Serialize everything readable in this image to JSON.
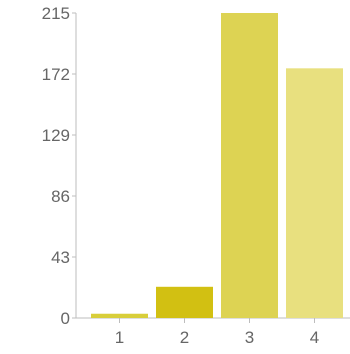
{
  "chart_data": {
    "type": "bar",
    "categories": [
      "1",
      "2",
      "3",
      "4"
    ],
    "values": [
      3,
      22,
      215,
      176
    ],
    "yticks": [
      "0",
      "43",
      "86",
      "129",
      "172",
      "215"
    ],
    "ylim": [
      0,
      215
    ],
    "grid": false,
    "legend": "none",
    "colors": [
      "#d8ce3a",
      "#d2c012",
      "#ddd353",
      "#e8e07f"
    ]
  }
}
